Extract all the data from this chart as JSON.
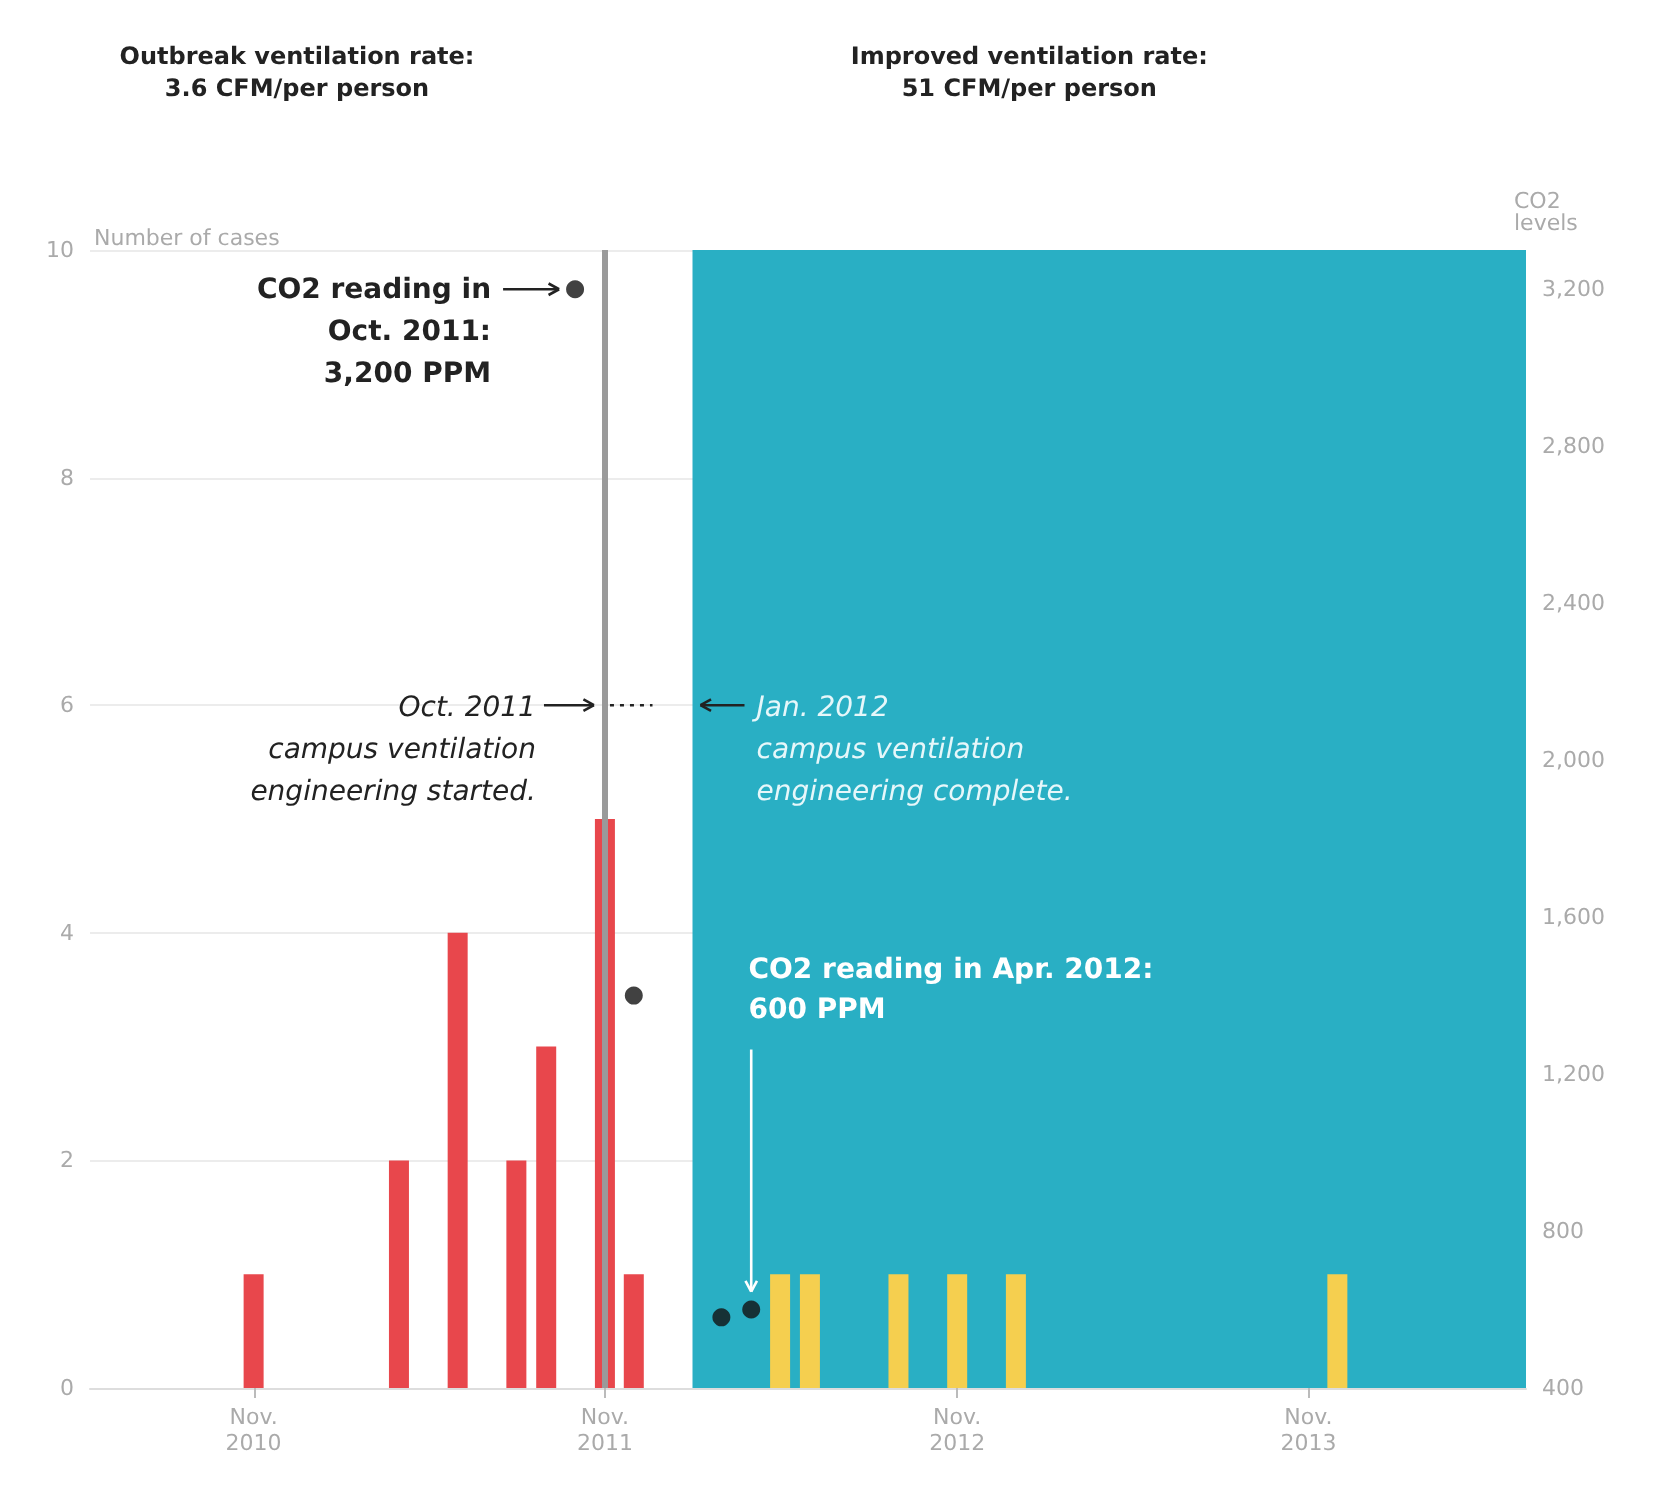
{
  "chart_data": {
    "type": "bar",
    "annotations": [
      "Outbreak ventilation rate:\n3.6 CFM/per person",
      "Improved ventilation rate:\n51 CFM/per person",
      "CO2 reading in\nOct. 2011:\n3,200 PPM",
      "CO2 reading in Apr. 2012:\n600 PPM"
    ],
    "ylabel": "Number of cases",
    "y2label": "CO2\nlevels",
    "series": [
      {
        "color": "#e8474c",
        "x": [
          "2010-11",
          "2011-04",
          "2011-06",
          "2011-08",
          "2011-09",
          "2011-11",
          "2011-12"
        ],
        "values": [
          1,
          2,
          4,
          2,
          3,
          5,
          1
        ]
      },
      {
        "color": "#f5cf4f",
        "x": [
          "2012-05",
          "2012-06",
          "2012-09",
          "2012-11",
          "2013-01",
          "2013-12"
        ],
        "values": [
          1,
          1,
          1,
          1,
          1,
          1
        ]
      },
      {
        "type": "scatter",
        "axis": "y2",
        "color": "#111111",
        "x": [
          "2011-10",
          "2011-12",
          "2012-03",
          "2012-04"
        ],
        "values": [
          3200,
          1400,
          580,
          600
        ]
      }
    ],
    "xlim": [
      "2010-05-15",
      "2014-06-15"
    ],
    "xticks": [
      {
        "value": "2010-11",
        "label": "Nov.\n2010"
      },
      {
        "value": "2011-11",
        "label": "Nov.\n2011"
      },
      {
        "value": "2012-11",
        "label": "Nov.\n2012"
      },
      {
        "value": "2013-11",
        "label": "Nov.\n2013"
      }
    ],
    "ylim": [
      0,
      10
    ],
    "yticks": [
      0,
      2,
      4,
      6,
      8,
      10
    ],
    "y2lim": [
      400,
      3300
    ],
    "y2ticks": [
      400,
      {
        "value": 800,
        "label": "800"
      },
      {
        "value": 1200,
        "label": "1,200"
      },
      {
        "value": 1600,
        "label": "1,600"
      },
      {
        "value": 2000,
        "label": "2,000"
      },
      {
        "value": 2400,
        "label": "2,400"
      },
      {
        "value": 2800,
        "label": "2,800"
      },
      {
        "value": 3200,
        "label": "3,200"
      }
    ],
    "ref_lines": [
      {
        "axis": "x",
        "value": "2011-10-31",
        "label": "Oct. 2011\ncampus ventilation\nengineering started.",
        "color": "#9a9a9a"
      }
    ],
    "bands": [
      {
        "axis": "x",
        "from": "2012-01-31",
        "to": "2014-06-15",
        "label": "Jan. 2012\ncampus ventilation\nengineering complete.",
        "color": "#29afc4"
      }
    ],
    "grid": "y",
    "marker": "circle"
  }
}
